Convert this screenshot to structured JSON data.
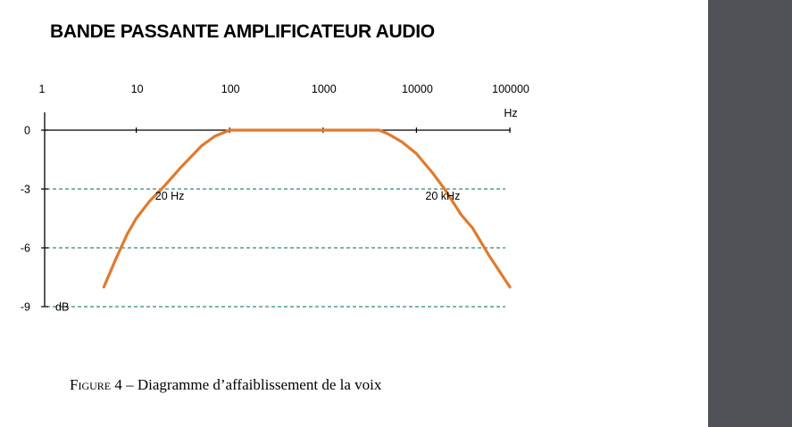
{
  "side_panel": {
    "color": "#4f5357"
  },
  "chart_data": {
    "type": "line",
    "title": "BANDE PASSANTE AMPLIFICATEUR AUDIO",
    "x_scale": "log",
    "xlim": [
      1,
      100000
    ],
    "ylim": [
      -9,
      0
    ],
    "x_tick_labels": [
      "1",
      "10",
      "100",
      "1000",
      "10000",
      "100000"
    ],
    "x_ticks": [
      1,
      10,
      100,
      1000,
      10000,
      100000
    ],
    "x_unit": "Hz",
    "y_tick_labels": [
      "0",
      "-3",
      "-6",
      "-9"
    ],
    "y_ticks": [
      0,
      -3,
      -6,
      -9
    ],
    "y_unit": "dB",
    "grid": {
      "dashed_y": [
        -3,
        -6,
        -9
      ],
      "color": "#2e8b70"
    },
    "line_color": "#e07a2e",
    "series": [
      {
        "x": [
          4.5,
          6,
          8,
          10,
          14,
          20,
          30,
          50,
          70,
          100,
          1000,
          4000,
          5000,
          7000,
          10000,
          15000,
          20000,
          30000,
          40000,
          60000,
          100000
        ],
        "y": [
          -8,
          -6.6,
          -5.3,
          -4.5,
          -3.6,
          -2.85,
          -1.9,
          -0.8,
          -0.3,
          0,
          0,
          0,
          -0.2,
          -0.6,
          -1.2,
          -2.2,
          -3.0,
          -4.3,
          -5.0,
          -6.4,
          -8
        ]
      }
    ],
    "annotations": [
      {
        "text": "20 Hz",
        "x": 20,
        "y": -3
      },
      {
        "text": "20 kHz",
        "x": 20000,
        "y": -3
      }
    ]
  },
  "caption": {
    "label": "Figure 4",
    "separator": " – ",
    "text": "Diagramme d’affaiblissement de la voix"
  }
}
